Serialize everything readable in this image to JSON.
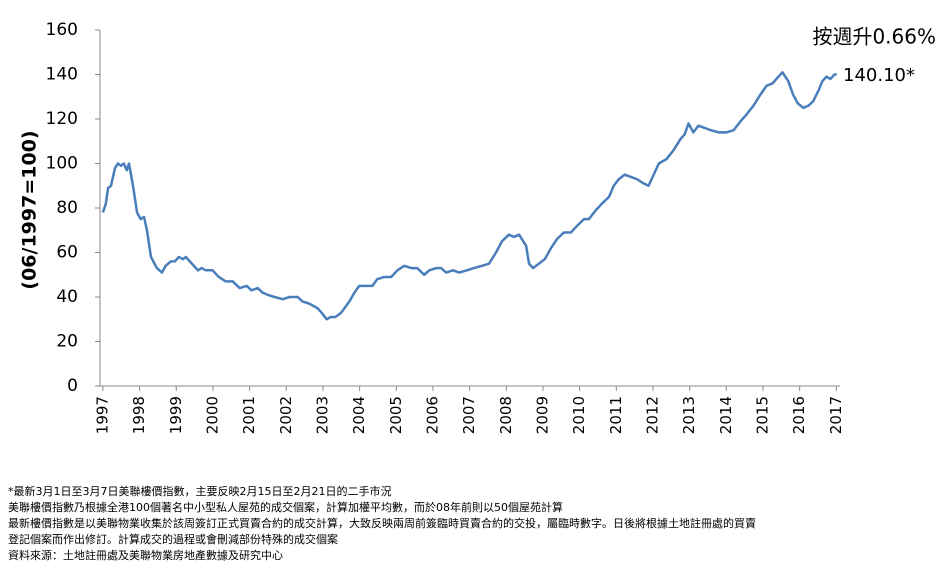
{
  "chart_data": {
    "type": "line",
    "y_label": "(06/1997=100)",
    "annotation_change": "按週升0.66%",
    "annotation_last": "140.10*",
    "xlim": [
      1996.92,
      2017.1
    ],
    "xticks": [
      1997,
      1998,
      1999,
      2000,
      2001,
      2002,
      2003,
      2004,
      2005,
      2006,
      2007,
      2008,
      2009,
      2010,
      2011,
      2012,
      2013,
      2014,
      2015,
      2016,
      2017
    ],
    "ylim": [
      0,
      160
    ],
    "yticks": [
      0,
      20,
      40,
      60,
      80,
      100,
      120,
      140,
      160
    ],
    "grid": false,
    "series": [
      {
        "color": "#4a7ebb",
        "x": [
          1997.0,
          1997.08,
          1997.14,
          1997.22,
          1997.33,
          1997.41,
          1997.49,
          1997.57,
          1997.65,
          1997.71,
          1997.82,
          1997.93,
          1998.03,
          1998.12,
          1998.2,
          1998.31,
          1998.47,
          1998.61,
          1998.71,
          1998.85,
          1998.96,
          1999.07,
          1999.18,
          1999.26,
          1999.37,
          1999.48,
          1999.59,
          1999.69,
          1999.8,
          1999.99,
          2000.16,
          2000.35,
          2000.54,
          2000.73,
          2000.92,
          2001.05,
          2001.22,
          2001.35,
          2001.49,
          2001.68,
          2001.9,
          2002.09,
          2002.31,
          2002.44,
          2002.63,
          2002.85,
          2002.96,
          2003.1,
          2003.21,
          2003.34,
          2003.5,
          2003.72,
          2003.86,
          2003.99,
          2004.21,
          2004.35,
          2004.48,
          2004.67,
          2004.86,
          2005.03,
          2005.22,
          2005.41,
          2005.57,
          2005.76,
          2005.9,
          2006.09,
          2006.22,
          2006.36,
          2006.55,
          2006.71,
          2006.93,
          2007.12,
          2007.34,
          2007.53,
          2007.72,
          2007.88,
          2008.07,
          2008.21,
          2008.35,
          2008.54,
          2008.62,
          2008.73,
          2008.89,
          2009.05,
          2009.22,
          2009.38,
          2009.57,
          2009.76,
          2009.93,
          2010.12,
          2010.25,
          2010.44,
          2010.61,
          2010.8,
          2010.93,
          2011.07,
          2011.23,
          2011.39,
          2011.56,
          2011.75,
          2011.88,
          2012.02,
          2012.16,
          2012.37,
          2012.56,
          2012.75,
          2012.86,
          2012.97,
          2013.1,
          2013.24,
          2013.41,
          2013.57,
          2013.79,
          2014.01,
          2014.2,
          2014.39,
          2014.55,
          2014.74,
          2014.93,
          2015.1,
          2015.26,
          2015.42,
          2015.53,
          2015.69,
          2015.82,
          2015.95,
          2016.1,
          2016.24,
          2016.37,
          2016.52,
          2016.62,
          2016.73,
          2016.84,
          2016.95,
          2017.01
        ],
        "values": [
          78,
          82,
          89,
          90,
          98,
          100,
          99,
          100,
          97,
          100,
          90,
          78,
          75,
          76,
          70,
          58,
          53,
          51,
          54,
          56,
          56,
          58,
          57,
          58,
          56,
          54,
          52,
          53,
          52,
          52,
          49,
          47,
          47,
          44,
          45,
          43,
          44,
          42,
          41,
          40,
          39,
          40,
          40,
          38,
          37,
          35,
          33,
          30,
          31,
          31,
          33,
          38,
          42,
          45,
          45,
          45,
          48,
          49,
          49,
          52,
          54,
          53,
          53,
          50,
          52,
          53,
          53,
          51,
          52,
          51,
          52,
          53,
          54,
          55,
          60,
          65,
          68,
          67,
          68,
          63,
          55,
          53,
          55,
          57,
          62,
          66,
          69,
          69,
          72,
          75,
          75,
          79,
          82,
          85,
          90,
          93,
          95,
          94,
          93,
          91,
          90,
          95,
          100,
          102,
          106,
          111,
          113,
          118,
          114,
          117,
          116,
          115,
          114,
          114,
          115,
          119,
          122,
          126,
          131,
          135,
          136,
          139,
          141,
          137,
          131,
          127,
          125,
          126,
          128,
          133,
          137,
          139,
          138,
          140,
          140.1
        ]
      }
    ],
    "notes": [
      "*最新3月1日至3月7日美聯樓價指數，主要反映2月15日至2月21日的二手市況",
      "美聯樓價指數乃根據全港100個著名中小型私人屋苑的成交個案，計算加權平均數，而於08年前則以50個屋苑計算",
      "最新樓價指數是以美聯物業收集於該周簽訂正式買賣合約的成交計算，大致反映兩周前簽臨時買賣合約的交投，屬臨時數字。日後將根據土地註冊處的買賣",
      "登記個案而作出修訂。計算成交的過程或會刪減部份特殊的成交個案",
      "資料來源：土地註冊處及美聯物業房地產數據及研究中心"
    ]
  }
}
